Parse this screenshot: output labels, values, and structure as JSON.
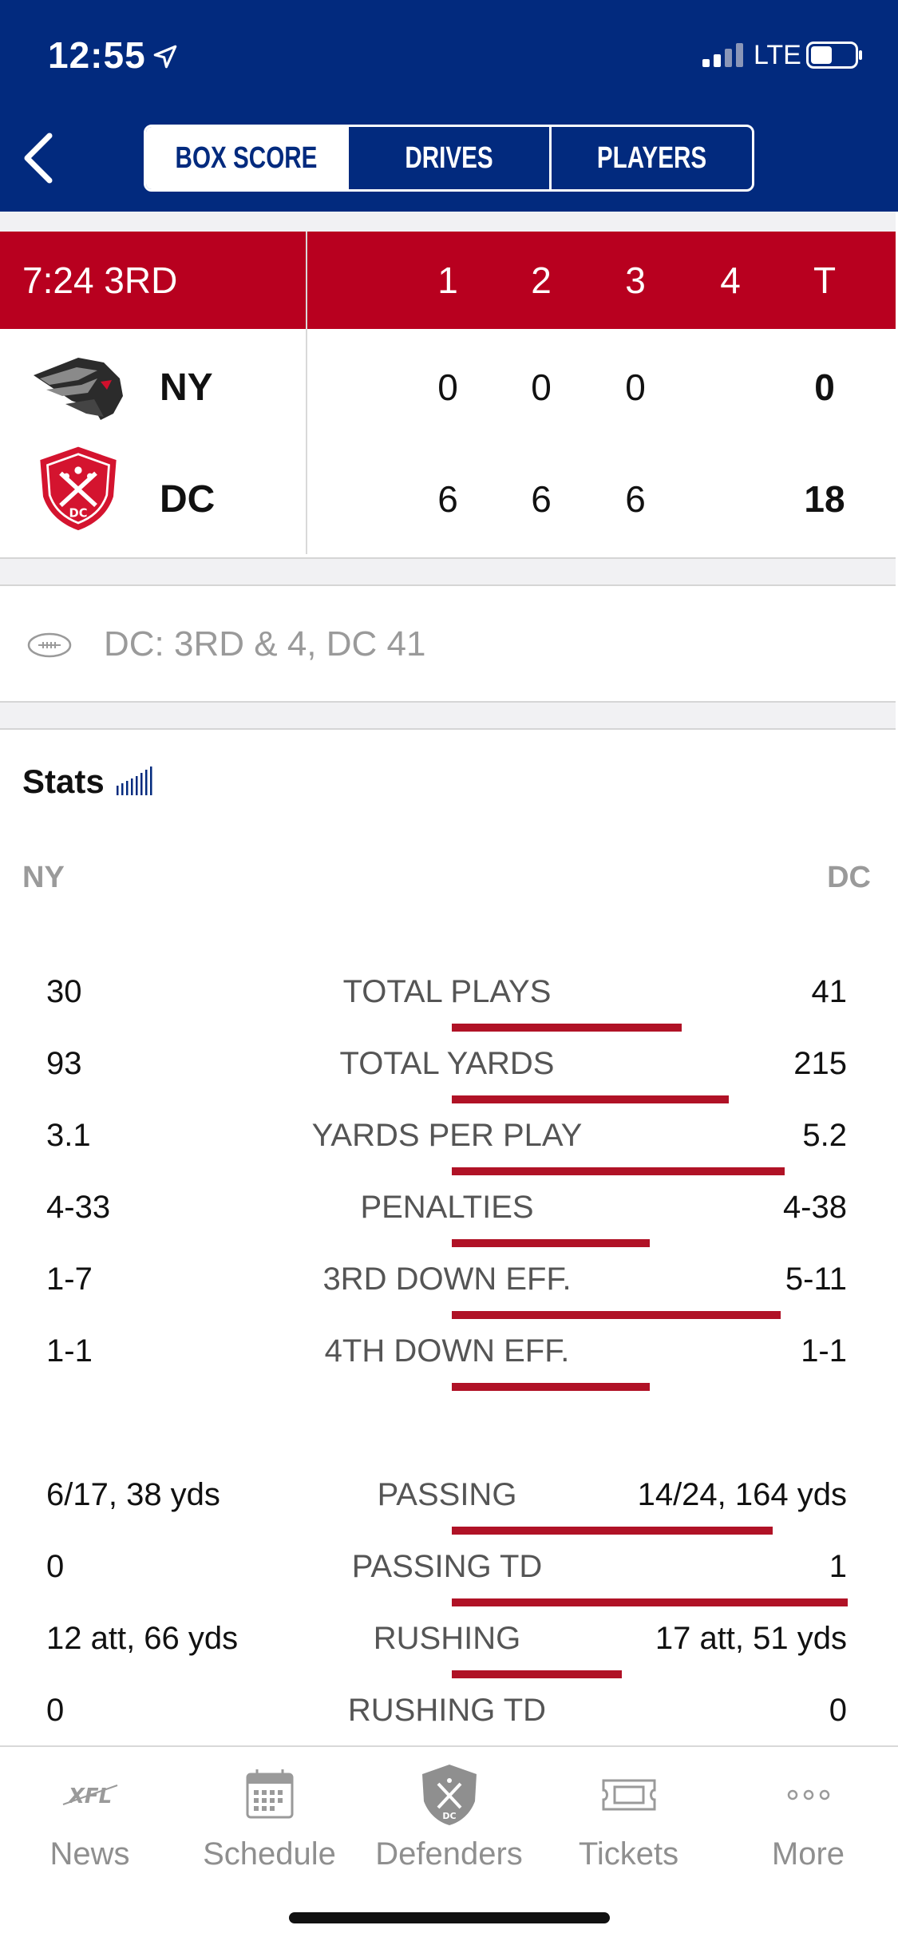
{
  "status_bar": {
    "time": "12:55",
    "network": "LTE"
  },
  "nav": {
    "tabs": [
      {
        "label": "BOX SCORE",
        "active": true
      },
      {
        "label": "DRIVES",
        "active": false
      },
      {
        "label": "PLAYERS",
        "active": false
      }
    ]
  },
  "scoreboard": {
    "clock": "7:24 3RD",
    "quarters": [
      "1",
      "2",
      "3",
      "4",
      "T"
    ],
    "teams": [
      {
        "abbr": "NY",
        "scores": [
          "0",
          "0",
          "0",
          "",
          "0"
        ]
      },
      {
        "abbr": "DC",
        "scores": [
          "6",
          "6",
          "6",
          "",
          "18"
        ]
      }
    ],
    "colors": {
      "header": "#b8001f",
      "nav": "#022a7e"
    }
  },
  "situation": "DC: 3RD & 4, DC 41",
  "stats": {
    "title": "Stats",
    "left_team": "NY",
    "right_team": "DC",
    "group1": [
      {
        "label": "TOTAL PLAYS",
        "left": "30",
        "right": "41",
        "bar": 0.58
      },
      {
        "label": "TOTAL YARDS",
        "left": "93",
        "right": "215",
        "bar": 0.7
      },
      {
        "label": "YARDS PER PLAY",
        "left": "3.1",
        "right": "5.2",
        "bar": 0.84
      },
      {
        "label": "PENALTIES",
        "left": "4-33",
        "right": "4-38",
        "bar": 0.5
      },
      {
        "label": "3RD DOWN EFF.",
        "left": "1-7",
        "right": "5-11",
        "bar": 0.83
      },
      {
        "label": "4TH DOWN EFF.",
        "left": "1-1",
        "right": "1-1",
        "bar": 0.5
      }
    ],
    "group2": [
      {
        "label": "PASSING",
        "left": "6/17, 38 yds",
        "right": "14/24, 164 yds",
        "bar": 0.81
      },
      {
        "label": "PASSING TD",
        "left": "0",
        "right": "1",
        "bar": 1.0
      },
      {
        "label": "RUSHING",
        "left": "12 att, 66 yds",
        "right": "17 att, 51 yds",
        "bar": 0.43
      },
      {
        "label": "RUSHING TD",
        "left": "0",
        "right": "0",
        "bar": 0
      }
    ]
  },
  "tabbar": [
    {
      "label": "News",
      "icon": "xfl-logo-icon"
    },
    {
      "label": "Schedule",
      "icon": "calendar-icon"
    },
    {
      "label": "Defenders",
      "icon": "defenders-shield-icon"
    },
    {
      "label": "Tickets",
      "icon": "ticket-icon"
    },
    {
      "label": "More",
      "icon": "ellipsis-icon"
    }
  ]
}
